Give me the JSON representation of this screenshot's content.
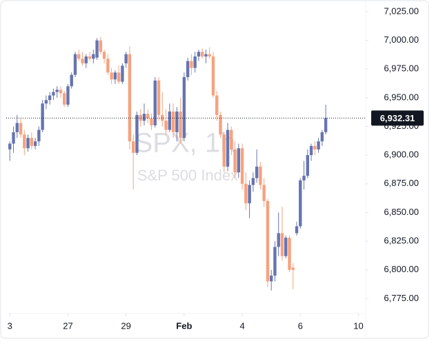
{
  "chart_data": {
    "type": "candlestick",
    "title": "SPX, 1h",
    "subtitle": "S&P 500 Index",
    "up_color": "#6674b0",
    "down_color": "#f6a27e",
    "x": [
      0,
      1,
      2,
      3,
      4,
      5,
      6,
      7,
      8,
      9,
      10,
      11,
      12,
      13,
      14,
      15,
      16,
      17,
      18,
      19,
      20,
      21,
      22,
      23,
      24,
      25,
      26,
      27,
      28,
      29,
      30,
      31,
      32,
      33,
      34,
      35,
      36,
      37,
      38,
      39,
      40,
      41,
      42,
      43,
      44,
      45,
      46,
      47,
      48,
      49,
      50,
      51,
      52,
      53,
      54,
      55,
      56,
      57,
      58,
      59,
      60,
      61,
      62,
      63,
      64,
      65,
      66,
      67,
      68,
      69,
      70,
      71,
      72,
      73,
      74,
      75,
      76,
      77,
      78,
      79,
      80,
      81,
      82,
      83,
      84,
      85,
      86,
      87
    ],
    "open": [
      6905,
      6910,
      6920,
      6928,
      6918,
      6906,
      6915,
      6908,
      6912,
      6922,
      6945,
      6948,
      6952,
      6955,
      6957,
      6954,
      6944,
      6960,
      6970,
      6988,
      6984,
      6980,
      6986,
      6984,
      6985,
      7000,
      6990,
      6984,
      6972,
      6966,
      6972,
      6964,
      6980,
      6988,
      6912,
      6902,
      6935,
      6930,
      6936,
      6932,
      6926,
      6965,
      6935,
      6930,
      6922,
      6938,
      6920,
      6938,
      6915,
      6968,
      6982,
      6976,
      6986,
      6990,
      6986,
      6988,
      6986,
      6952,
      6935,
      6918,
      6890,
      6922,
      6905,
      6885,
      6906,
      6875,
      6858,
      6874,
      6880,
      6890,
      6874,
      6860,
      6790,
      6795,
      6820,
      6832,
      6812,
      6828,
      6802,
      6832,
      6838,
      6878,
      6882,
      6900,
      6908,
      6905,
      6912,
      6920
    ],
    "high": [
      6912,
      6925,
      6935,
      6932,
      6922,
      6918,
      6920,
      6915,
      6925,
      6948,
      6952,
      6955,
      6958,
      6960,
      6960,
      6956,
      6962,
      6972,
      6990,
      6992,
      6990,
      6988,
      6990,
      6992,
      7002,
      7003,
      6992,
      6988,
      6976,
      6974,
      6978,
      6980,
      6990,
      6995,
      6918,
      6938,
      6940,
      6945,
      6940,
      6936,
      6968,
      6968,
      6955,
      6940,
      6945,
      6945,
      6942,
      6950,
      6972,
      6985,
      6988,
      6990,
      6992,
      6993,
      6992,
      6994,
      6990,
      6956,
      6938,
      6920,
      6928,
      6925,
      6912,
      6910,
      6910,
      6885,
      6878,
      6885,
      6905,
      6894,
      6880,
      6862,
      6800,
      6825,
      6850,
      6855,
      6830,
      6830,
      6806,
      6842,
      6880,
      6895,
      6905,
      6910,
      6912,
      6915,
      6922,
      6944
    ],
    "low": [
      6895,
      6902,
      6915,
      6915,
      6900,
      6903,
      6905,
      6905,
      6908,
      6920,
      6940,
      6944,
      6948,
      6950,
      6950,
      6942,
      6942,
      6958,
      6968,
      6982,
      6978,
      6976,
      6982,
      6980,
      6983,
      6988,
      6980,
      6970,
      6962,
      6962,
      6962,
      6962,
      6976,
      6905,
      6870,
      6900,
      6925,
      6926,
      6928,
      6922,
      6924,
      6930,
      6925,
      6918,
      6920,
      6915,
      6912,
      6910,
      6912,
      6965,
      6970,
      6972,
      6982,
      6984,
      6980,
      6984,
      6950,
      6930,
      6915,
      6885,
      6886,
      6900,
      6880,
      6880,
      6870,
      6852,
      6845,
      6868,
      6876,
      6870,
      6855,
      6785,
      6782,
      6790,
      6812,
      6808,
      6810,
      6798,
      6783,
      6830,
      6836,
      6870,
      6880,
      6895,
      6900,
      6902,
      6908,
      6918
    ],
    "close": [
      6910,
      6920,
      6928,
      6918,
      6906,
      6915,
      6908,
      6912,
      6922,
      6945,
      6948,
      6952,
      6955,
      6957,
      6954,
      6944,
      6960,
      6970,
      6988,
      6984,
      6980,
      6986,
      6984,
      6988,
      7000,
      6990,
      6984,
      6972,
      6966,
      6972,
      6964,
      6978,
      6988,
      6912,
      6902,
      6935,
      6930,
      6936,
      6932,
      6926,
      6965,
      6935,
      6930,
      6922,
      6938,
      6920,
      6938,
      6915,
      6968,
      6982,
      6976,
      6986,
      6990,
      6986,
      6988,
      6986,
      6952,
      6935,
      6918,
      6890,
      6922,
      6905,
      6885,
      6906,
      6875,
      6858,
      6874,
      6880,
      6890,
      6874,
      6860,
      6790,
      6795,
      6820,
      6832,
      6812,
      6828,
      6800,
      6800,
      6838,
      6878,
      6882,
      6900,
      6908,
      6905,
      6912,
      6920,
      6932.31
    ],
    "xlim": [
      -1,
      98
    ],
    "xticks": [
      {
        "value": 0,
        "label": "3"
      },
      {
        "value": 16,
        "label": "27"
      },
      {
        "value": 32,
        "label": "29"
      },
      {
        "value": 48,
        "label": "Feb",
        "bold": true
      },
      {
        "value": 64,
        "label": "4"
      },
      {
        "value": 80,
        "label": "6"
      },
      {
        "value": 96,
        "label": "10"
      }
    ],
    "ylim": [
      6762,
      7034
    ],
    "yticks": [
      {
        "value": 6775,
        "label": "6,775.00"
      },
      {
        "value": 6800,
        "label": "6,800.00"
      },
      {
        "value": 6825,
        "label": "6,825.00"
      },
      {
        "value": 6850,
        "label": "6,850.00"
      },
      {
        "value": 6875,
        "label": "6,875.00"
      },
      {
        "value": 6900,
        "label": "6,900.00"
      },
      {
        "value": 6925,
        "label": "6,925.00"
      },
      {
        "value": 6950,
        "label": "6,950.00"
      },
      {
        "value": 6975,
        "label": "6,975.00"
      },
      {
        "value": 7000,
        "label": "7,000.00"
      },
      {
        "value": 7025,
        "label": "7,025.00"
      }
    ],
    "last_price": {
      "value": 6932.31,
      "label": "6,932.31"
    }
  }
}
